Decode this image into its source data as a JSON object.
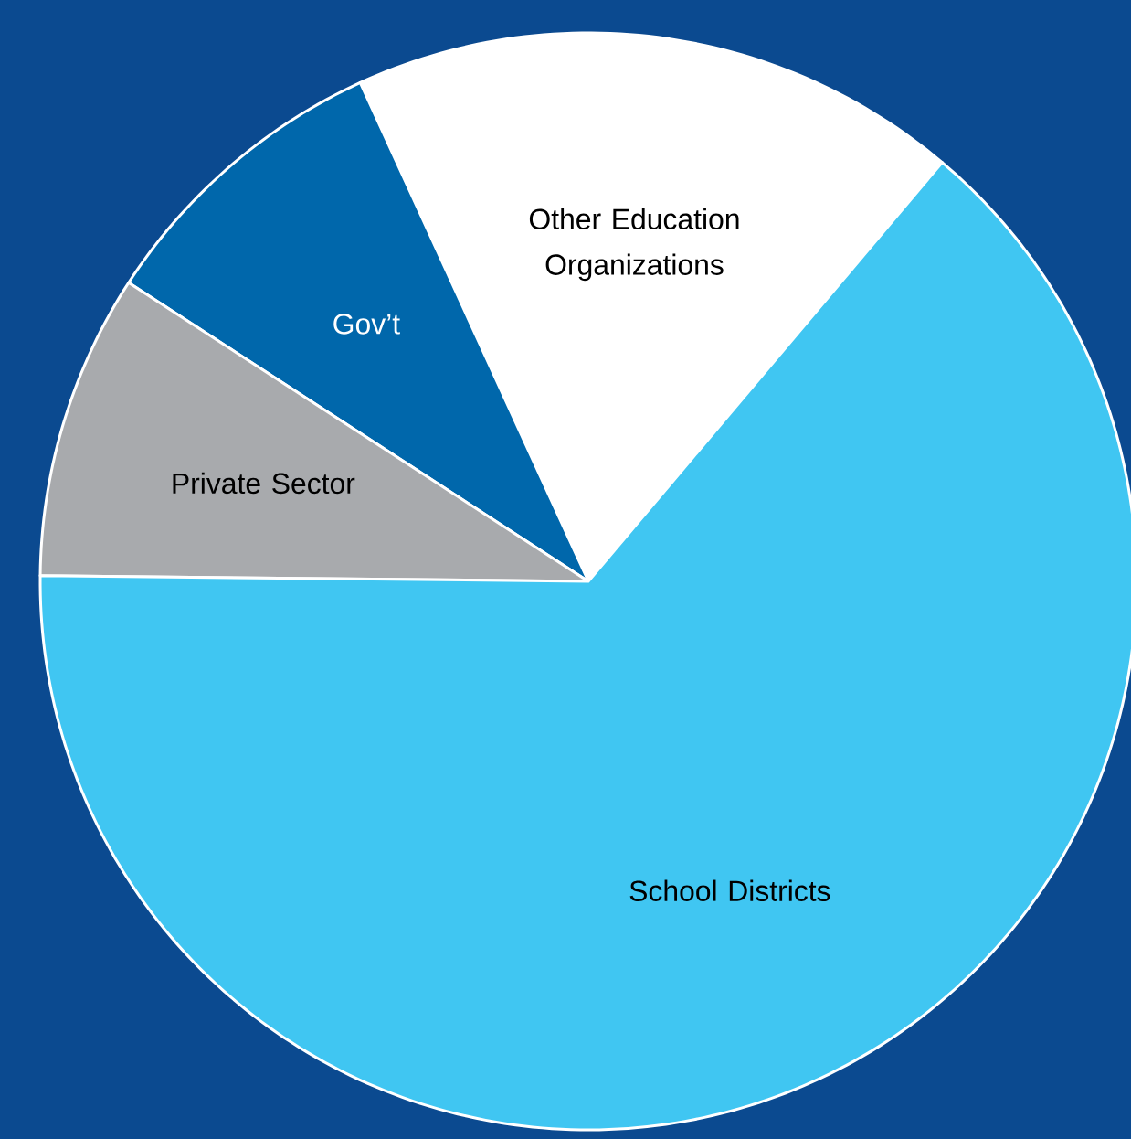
{
  "chart_data": {
    "type": "pie",
    "categories": [
      "Other Education Organizations",
      "Gov’t",
      "Private Sector",
      "School Districts"
    ],
    "values": [
      18,
      9,
      9,
      64
    ],
    "colors": [
      "#ffffff",
      "#0067ab",
      "#a8aaad",
      "#40c6f2"
    ]
  }
}
